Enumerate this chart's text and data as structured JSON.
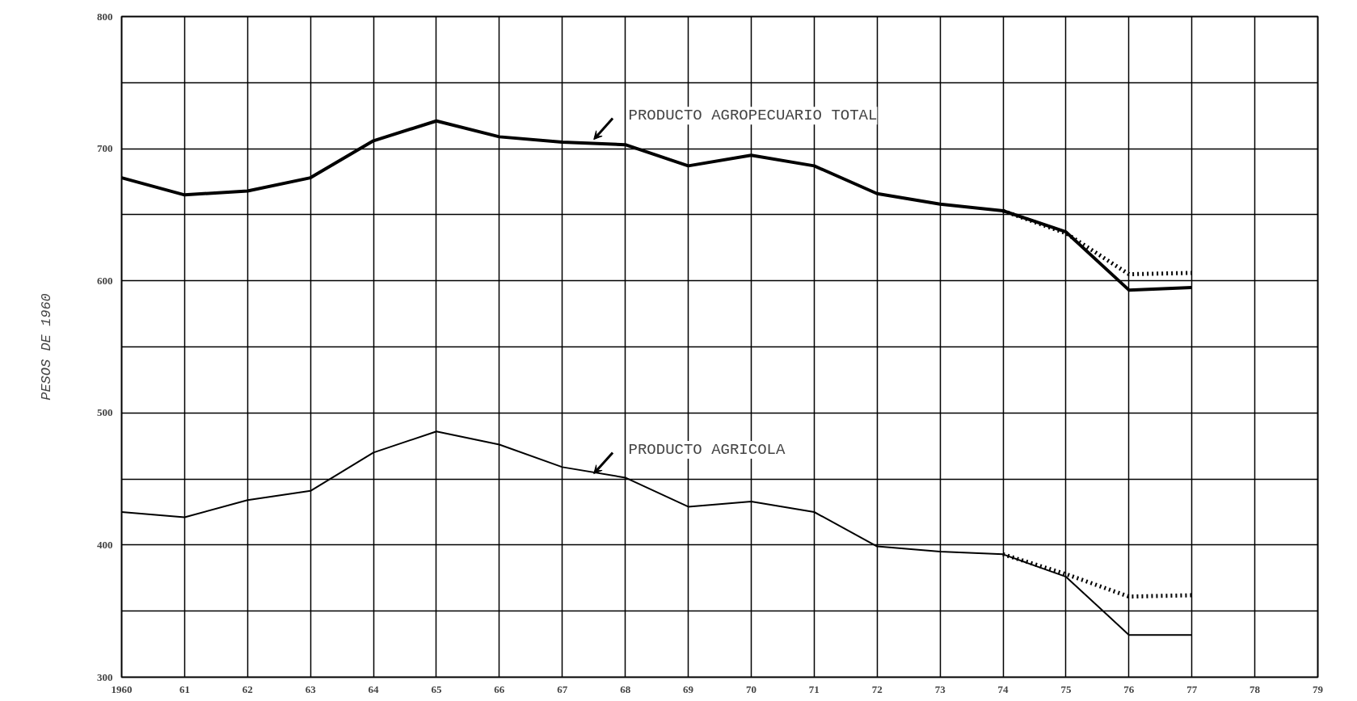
{
  "chart_data": {
    "type": "line",
    "ylabel": "PESOS DE 1960",
    "x": [
      1960,
      1961,
      1962,
      1963,
      1964,
      1965,
      1966,
      1967,
      1968,
      1969,
      1970,
      1971,
      1972,
      1973,
      1974,
      1975,
      1976,
      1977
    ],
    "series": [
      {
        "color": "#000000",
        "line_style": "solid",
        "values": [
          678,
          665,
          668,
          678,
          706,
          721,
          709,
          705,
          703,
          687,
          695,
          687,
          666,
          658,
          653,
          637,
          593,
          595
        ]
      },
      {
        "color": "#000000",
        "line_style": "dotted",
        "x": [
          1974,
          1975,
          1976,
          1977
        ],
        "values": [
          653,
          636,
          605,
          606
        ]
      },
      {
        "color": "#000000",
        "line_style": "solid",
        "values": [
          425,
          421,
          434,
          441,
          470,
          486,
          476,
          459,
          451,
          429,
          433,
          425,
          399,
          395,
          393,
          376,
          332,
          332
        ]
      },
      {
        "color": "#000000",
        "line_style": "dotted",
        "x": [
          1974,
          1975,
          1976,
          1977
        ],
        "values": [
          393,
          378,
          361,
          362
        ]
      }
    ],
    "annotations": [
      {
        "text": "PRODUCTO AGROPECUARIO TOTAL",
        "x": 1967.5,
        "y": 705
      },
      {
        "text": "PRODUCTO AGRICOLA",
        "x": 1967.5,
        "y": 452
      }
    ],
    "xlim": [
      1960,
      1979
    ],
    "xticks": [
      {
        "value": 1960,
        "label": "1960"
      },
      {
        "value": 1961,
        "label": "61"
      },
      {
        "value": 1962,
        "label": "62"
      },
      {
        "value": 1963,
        "label": "63"
      },
      {
        "value": 1964,
        "label": "64"
      },
      {
        "value": 1965,
        "label": "65"
      },
      {
        "value": 1966,
        "label": "66"
      },
      {
        "value": 1967,
        "label": "67"
      },
      {
        "value": 1968,
        "label": "68"
      },
      {
        "value": 1969,
        "label": "69"
      },
      {
        "value": 1970,
        "label": "70"
      },
      {
        "value": 1971,
        "label": "71"
      },
      {
        "value": 1972,
        "label": "72"
      },
      {
        "value": 1973,
        "label": "73"
      },
      {
        "value": 1974,
        "label": "74"
      },
      {
        "value": 1975,
        "label": "75"
      },
      {
        "value": 1976,
        "label": "76"
      },
      {
        "value": 1977,
        "label": "77"
      },
      {
        "value": 1978,
        "label": "78"
      },
      {
        "value": 1979,
        "label": "79"
      }
    ],
    "ylim": [
      300,
      800
    ],
    "yticks": [
      300,
      {
        "value": 350,
        "label": null
      },
      400,
      {
        "value": 450,
        "label": null
      },
      500,
      {
        "value": 550,
        "label": null
      },
      600,
      {
        "value": 650,
        "label": null
      },
      700,
      {
        "value": 750,
        "label": null
      },
      800
    ],
    "grid": true,
    "marker": "none"
  }
}
